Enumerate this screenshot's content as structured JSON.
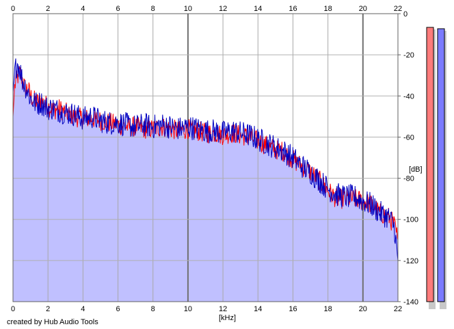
{
  "footer": {
    "credit": "created by Hub Audio Tools"
  },
  "chart_data": {
    "type": "area",
    "xlabel": "[kHz]",
    "ylabel": "[dB]",
    "xlim": [
      0,
      22
    ],
    "ylim": [
      -140,
      0
    ],
    "x_ticks": [
      0,
      2,
      4,
      6,
      8,
      10,
      12,
      14,
      16,
      18,
      20,
      22
    ],
    "y_ticks": [
      0,
      -20,
      -40,
      -60,
      -80,
      -100,
      -120,
      -140
    ],
    "x_tick_labels": [
      "0",
      "2",
      "4",
      "6",
      "8",
      "10",
      "12",
      "14",
      "16",
      "18",
      "20",
      "22"
    ],
    "y_tick_labels": [
      "0",
      "-20",
      "-40",
      "-60",
      "-80",
      "-100",
      "-120",
      "-140"
    ],
    "grid": true,
    "fill_color": "#c0c0ff",
    "series": [
      {
        "color": "#ff0000",
        "x": [
          0,
          0.1,
          0.25,
          0.4,
          0.55,
          0.7,
          0.85,
          1,
          1.2,
          1.4,
          1.6,
          1.8,
          2,
          2.3,
          2.6,
          3,
          3.5,
          4,
          4.5,
          5,
          5.5,
          6,
          6.5,
          7,
          7.5,
          8,
          8.5,
          9,
          9.5,
          10,
          10.5,
          11,
          11.5,
          12,
          12.5,
          13,
          13.5,
          14,
          14.5,
          15,
          15.5,
          16,
          16.5,
          17,
          17.5,
          18,
          18.5,
          19,
          19.5,
          20,
          20.5,
          21,
          21.5,
          21.8,
          22
        ],
        "values": [
          -50,
          -35,
          -31,
          -29,
          -32,
          -37,
          -36,
          -40,
          -42,
          -43,
          -42,
          -44,
          -45,
          -47,
          -46,
          -48,
          -50,
          -51,
          -51,
          -52,
          -53,
          -54,
          -55,
          -55,
          -56,
          -56,
          -55,
          -56,
          -57,
          -56,
          -57,
          -58,
          -58,
          -59,
          -58,
          -59,
          -60,
          -62,
          -64,
          -66,
          -67,
          -71,
          -74,
          -77,
          -81,
          -86,
          -90,
          -90,
          -90,
          -91,
          -93,
          -97,
          -99,
          -103,
          -110
        ]
      },
      {
        "color": "#0000c0",
        "x": [
          0,
          0.1,
          0.25,
          0.4,
          0.55,
          0.7,
          0.85,
          1,
          1.2,
          1.4,
          1.6,
          1.8,
          2,
          2.3,
          2.6,
          3,
          3.5,
          4,
          4.5,
          5,
          5.5,
          6,
          6.5,
          7,
          7.5,
          8,
          8.5,
          9,
          9.5,
          10,
          10.5,
          11,
          11.5,
          12,
          12.5,
          13,
          13.5,
          14,
          14.5,
          15,
          15.5,
          16,
          16.5,
          17,
          17.5,
          18,
          18.5,
          19,
          19.5,
          20,
          20.5,
          21,
          21.5,
          21.8,
          22
        ],
        "values": [
          -38,
          -28,
          -24,
          -27,
          -33,
          -35,
          -38,
          -41,
          -43,
          -44,
          -43,
          -45,
          -46,
          -46,
          -47,
          -48,
          -49,
          -51,
          -50,
          -52,
          -53,
          -53,
          -54,
          -55,
          -54,
          -55,
          -54,
          -55,
          -56,
          -55,
          -56,
          -57,
          -57,
          -58,
          -57,
          -58,
          -59,
          -61,
          -63,
          -65,
          -67,
          -70,
          -74,
          -77,
          -81,
          -85,
          -88,
          -89,
          -89,
          -91,
          -93,
          -97,
          -99,
          -104,
          -120
        ]
      }
    ],
    "level_meters": [
      {
        "color": "#ff7b7b",
        "top_db": -10
      },
      {
        "color": "#7b7bff",
        "top_db": -11
      }
    ]
  }
}
